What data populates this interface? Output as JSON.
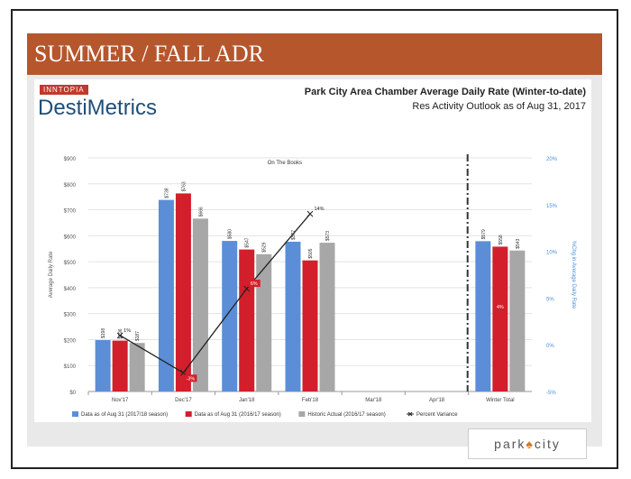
{
  "slide": {
    "title": "SUMMER / FALL ADR"
  },
  "brand": {
    "tag": "INNTOPIA",
    "name": "DestiMetrics"
  },
  "logo": {
    "left": "park",
    "mark": "♠",
    "right": "city"
  },
  "colors": {
    "s2018": "#5b8ed6",
    "s2017": "#d21f2b",
    "hist": "#a7a7a7",
    "accent": "#b5562d"
  },
  "chart_data": {
    "type": "bar",
    "title": "Park City Area Chamber Average Daily Rate (Winter-to-date)",
    "subtitle": "Res Activity Outlook as of Aug 31, 2017",
    "annotation": "On The Books",
    "ylabel": "Average Daily Rate",
    "y2label": "%Chg in Average Daily Rate",
    "ylim": [
      0,
      900
    ],
    "y2lim": [
      -5,
      20
    ],
    "yticks": [
      "$0",
      "$100",
      "$200",
      "$300",
      "$400",
      "$500",
      "$600",
      "$700",
      "$800",
      "$900"
    ],
    "y2ticks": [
      "-5%",
      "0%",
      "5%",
      "10%",
      "15%",
      "20%"
    ],
    "categories": [
      "Nov'17",
      "Dec'17",
      "Jan'18",
      "Feb'18",
      "Mar'18",
      "Apr'18",
      "Winter Total"
    ],
    "series": [
      {
        "name": "Data as of Aug 31 (2017/18 season)",
        "values": [
          198,
          738,
          580,
          577,
          null,
          null,
          579
        ],
        "labels": [
          "$198",
          "$738",
          "$580",
          "$577",
          "",
          "",
          "$579"
        ]
      },
      {
        "name": "Data as of Aug 31 (2016/17 season)",
        "values": [
          196,
          763,
          547,
          505,
          null,
          null,
          558
        ],
        "labels": [
          "$196",
          "$763",
          "$547",
          "$505",
          "",
          "",
          "$558"
        ]
      },
      {
        "name": "Historic Actual (2016/17 season)",
        "values": [
          187,
          666,
          529,
          573,
          null,
          null,
          543
        ],
        "labels": [
          "$187",
          "$666",
          "$529",
          "$573",
          "",
          "",
          "$543"
        ]
      }
    ],
    "variance": {
      "name": "Percent Variance",
      "values": [
        1,
        -3,
        6,
        14
      ],
      "labels": [
        "1%",
        "-3%",
        "6%",
        "14%"
      ],
      "total": 4,
      "total_label": "4%"
    },
    "legend": "bottom"
  }
}
